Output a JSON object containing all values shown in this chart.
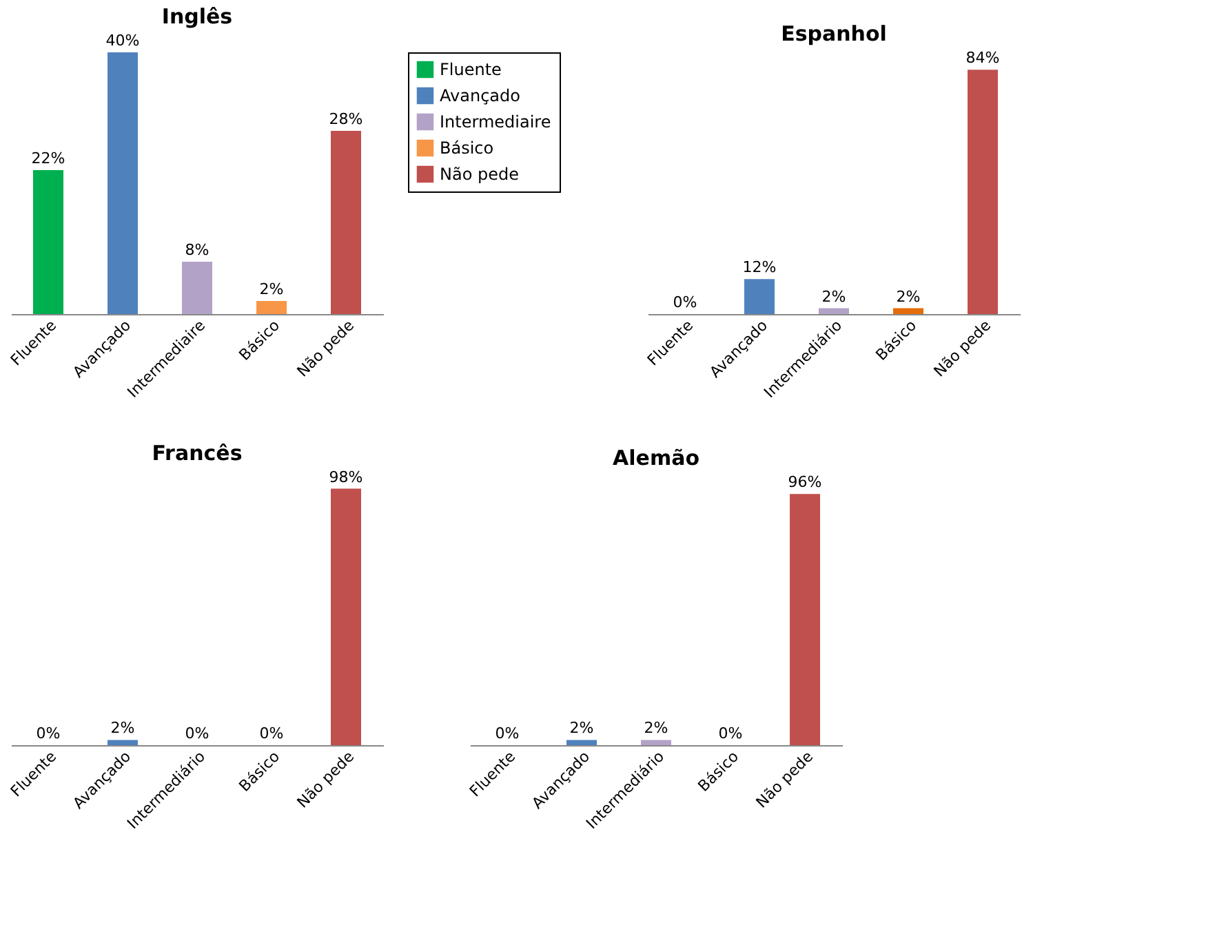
{
  "chart_data": [
    {
      "type": "bar",
      "title": "Inglês",
      "categories": [
        "Fluente",
        "Avançado",
        "Intermediaire",
        "Básico",
        "Não pede"
      ],
      "legend": "right",
      "series": [
        {
          "name": "Fluente",
          "color": "#00b050",
          "values": [
            22,
            null,
            null,
            null,
            null
          ],
          "value_labels": [
            "22%",
            null,
            null,
            null,
            null
          ]
        },
        {
          "name": "Avançado",
          "color": "#4f81bd",
          "values": [
            null,
            40,
            null,
            null,
            null
          ],
          "value_labels": [
            null,
            "40%",
            null,
            null,
            null
          ]
        },
        {
          "name": "Intermediaire",
          "color": "#b3a2c7",
          "values": [
            null,
            null,
            8,
            null,
            null
          ],
          "value_labels": [
            null,
            null,
            "8%",
            null,
            null
          ]
        },
        {
          "name": "Básico",
          "color": "#f79646",
          "values": [
            null,
            null,
            null,
            2,
            null
          ],
          "value_labels": [
            null,
            null,
            null,
            "2%",
            null
          ]
        },
        {
          "name": "Não pede",
          "color": "#c0504d",
          "values": [
            null,
            null,
            null,
            null,
            28
          ],
          "value_labels": [
            null,
            null,
            null,
            null,
            "28%"
          ]
        }
      ]
    },
    {
      "type": "bar",
      "title": "Espanhol",
      "categories": [
        "Fluente",
        "Avançado",
        "Intermediário",
        "Básico",
        "Não pede"
      ],
      "values": [
        0,
        12,
        2,
        2,
        84
      ],
      "value_labels": [
        "0%",
        "12%",
        "2%",
        "2%",
        "84%"
      ],
      "colors": [
        "#00b050",
        "#4f81bd",
        "#b3a2c7",
        "#e46c0a",
        "#c0504d"
      ]
    },
    {
      "type": "bar",
      "title": "Francês",
      "categories": [
        "Fluente",
        "Avançado",
        "Intermediário",
        "Básico",
        "Não pede"
      ],
      "values": [
        0,
        2,
        0,
        0,
        98
      ],
      "value_labels": [
        "0%",
        "2%",
        "0%",
        "0%",
        "98%"
      ],
      "colors": [
        "#00b050",
        "#4f81bd",
        "#b3a2c7",
        "#f79646",
        "#c0504d"
      ]
    },
    {
      "type": "bar",
      "title": "Alemão",
      "categories": [
        "Fluente",
        "Avançado",
        "Intermediário",
        "Básico",
        "Não pede"
      ],
      "values": [
        0,
        2,
        2,
        0,
        96
      ],
      "value_labels": [
        "0%",
        "2%",
        "2%",
        "0%",
        "96%"
      ],
      "colors": [
        "#00b050",
        "#4f81bd",
        "#b3a2c7",
        "#f79646",
        "#c0504d"
      ]
    }
  ]
}
